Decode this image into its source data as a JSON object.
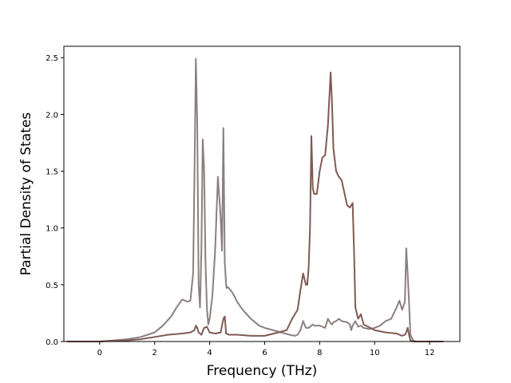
{
  "chart_data": {
    "type": "line",
    "title": "",
    "xlabel": "Frequency (THz)",
    "ylabel": "Partial Density of States",
    "xlim": [
      -1.3,
      13.1
    ],
    "ylim": [
      0,
      2.6
    ],
    "xticks": [
      0,
      2,
      4,
      6,
      8,
      10,
      12
    ],
    "yticks": [
      0.0,
      0.5,
      1.0,
      1.5,
      2.0,
      2.5
    ],
    "xtick_labels": [
      "0",
      "2",
      "4",
      "6",
      "8",
      "10",
      "12"
    ],
    "ytick_labels": [
      "0.0",
      "0.5",
      "1.0",
      "1.5",
      "2.0",
      "2.5"
    ],
    "grid": false,
    "legend": "none",
    "series": [
      {
        "color": "#8c7f7f",
        "x": [
          -1.2,
          -0.5,
          0,
          0.5,
          1,
          1.5,
          2,
          2.3,
          2.6,
          2.8,
          3.0,
          3.2,
          3.3,
          3.4,
          3.45,
          3.5,
          3.55,
          3.6,
          3.65,
          3.7,
          3.75,
          3.8,
          3.85,
          3.9,
          3.95,
          4.0,
          4.1,
          4.2,
          4.3,
          4.4,
          4.45,
          4.5,
          4.55,
          4.6,
          4.62,
          4.65,
          4.7,
          4.8,
          4.9,
          5.0,
          5.2,
          5.5,
          5.8,
          6.0,
          6.3,
          6.6,
          6.9,
          7.1,
          7.2,
          7.3,
          7.4,
          7.5,
          7.6,
          7.7,
          7.75,
          7.8,
          7.9,
          8.0,
          8.1,
          8.2,
          8.3,
          8.4,
          8.45,
          8.5,
          8.6,
          8.7,
          8.8,
          9.0,
          9.1,
          9.15,
          9.2,
          9.3,
          9.4,
          9.5,
          9.6,
          9.8,
          10.0,
          10.2,
          10.4,
          10.6,
          10.8,
          10.9,
          11.0,
          11.1,
          11.15,
          11.2,
          11.25,
          11.3,
          11.4,
          11.5,
          12.0,
          12.5
        ],
        "y": [
          0.0,
          0.0,
          0.0,
          0.01,
          0.02,
          0.04,
          0.08,
          0.14,
          0.22,
          0.3,
          0.37,
          0.35,
          0.36,
          0.6,
          1.5,
          2.49,
          1.9,
          0.5,
          0.3,
          0.8,
          1.78,
          1.5,
          0.7,
          0.3,
          0.15,
          0.2,
          0.4,
          0.8,
          1.45,
          1.1,
          0.8,
          1.88,
          0.7,
          0.5,
          0.47,
          0.48,
          0.47,
          0.44,
          0.4,
          0.35,
          0.28,
          0.2,
          0.14,
          0.12,
          0.1,
          0.08,
          0.06,
          0.05,
          0.06,
          0.1,
          0.18,
          0.12,
          0.12,
          0.14,
          0.15,
          0.14,
          0.14,
          0.14,
          0.13,
          0.12,
          0.2,
          0.16,
          0.15,
          0.17,
          0.18,
          0.2,
          0.18,
          0.17,
          0.15,
          0.1,
          0.14,
          0.18,
          0.13,
          0.14,
          0.12,
          0.11,
          0.12,
          0.14,
          0.18,
          0.2,
          0.3,
          0.36,
          0.28,
          0.35,
          0.82,
          0.6,
          0.35,
          0.06,
          0.01,
          0.0,
          0.0,
          0.0
        ]
      },
      {
        "color": "#7f5a52",
        "x": [
          -1.2,
          -0.5,
          0,
          0.5,
          1,
          1.5,
          2,
          2.5,
          3.0,
          3.3,
          3.45,
          3.5,
          3.55,
          3.6,
          3.7,
          3.8,
          3.9,
          4.0,
          4.2,
          4.4,
          4.5,
          4.55,
          4.6,
          4.7,
          5.0,
          5.5,
          6.0,
          6.5,
          6.8,
          7.0,
          7.2,
          7.3,
          7.4,
          7.45,
          7.5,
          7.55,
          7.6,
          7.65,
          7.7,
          7.75,
          7.8,
          7.9,
          8.0,
          8.1,
          8.2,
          8.3,
          8.4,
          8.45,
          8.5,
          8.6,
          8.7,
          8.8,
          9.0,
          9.1,
          9.15,
          9.2,
          9.25,
          9.3,
          9.4,
          9.5,
          9.6,
          10.0,
          10.4,
          10.8,
          11.0,
          11.1,
          11.15,
          11.2,
          11.25,
          11.3,
          11.4,
          12.0,
          12.5
        ],
        "y": [
          0.0,
          0.0,
          0.0,
          0.005,
          0.01,
          0.02,
          0.04,
          0.06,
          0.07,
          0.08,
          0.1,
          0.14,
          0.12,
          0.08,
          0.06,
          0.12,
          0.13,
          0.08,
          0.07,
          0.08,
          0.2,
          0.22,
          0.07,
          0.06,
          0.06,
          0.05,
          0.05,
          0.08,
          0.1,
          0.2,
          0.28,
          0.45,
          0.6,
          0.55,
          0.5,
          0.5,
          0.65,
          1.0,
          1.81,
          1.35,
          1.3,
          1.3,
          1.5,
          1.62,
          1.64,
          1.9,
          2.37,
          2.1,
          1.7,
          1.5,
          1.45,
          1.42,
          1.2,
          1.18,
          1.2,
          1.22,
          0.8,
          0.3,
          0.2,
          0.24,
          0.15,
          0.1,
          0.08,
          0.07,
          0.05,
          0.06,
          0.08,
          0.12,
          0.06,
          0.01,
          0.0,
          0.0,
          0.0
        ]
      }
    ]
  }
}
